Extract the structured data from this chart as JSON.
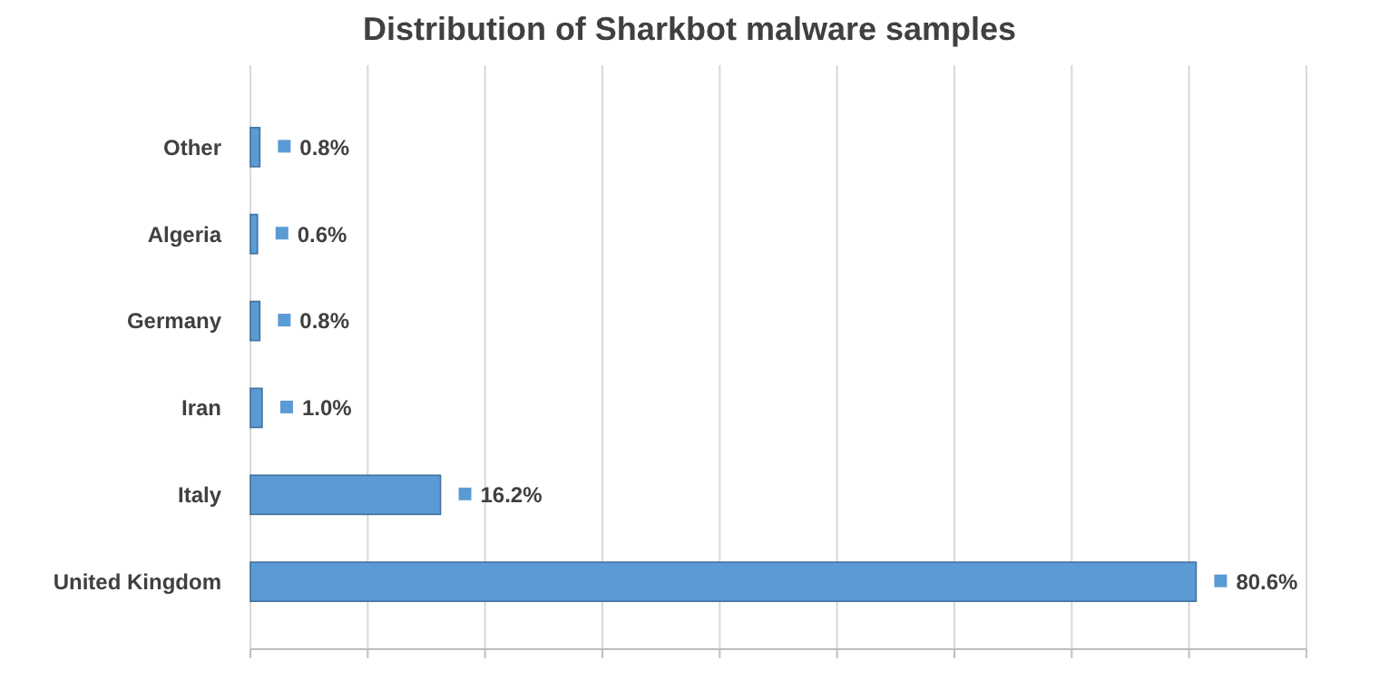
{
  "chart_data": {
    "type": "bar",
    "orientation": "horizontal",
    "title": "Distribution of Sharkbot malware samples",
    "categories": [
      "Other",
      "Algeria",
      "Germany",
      "Iran",
      "Italy",
      "United Kingdom"
    ],
    "values": [
      0.8,
      0.6,
      0.8,
      1.0,
      16.2,
      80.6
    ],
    "value_labels": [
      "0.8%",
      "0.6%",
      "0.8%",
      "1.0%",
      "16.2%",
      "80.6%"
    ],
    "color": "#5b9bd5",
    "xlim": [
      0,
      90
    ],
    "xticks": [
      {
        "value": 0,
        "label": null
      },
      {
        "value": 10,
        "label": null
      },
      {
        "value": 20,
        "label": null
      },
      {
        "value": 30,
        "label": null
      },
      {
        "value": 40,
        "label": null
      },
      {
        "value": 50,
        "label": null
      },
      {
        "value": 60,
        "label": null
      },
      {
        "value": 70,
        "label": null
      },
      {
        "value": 80,
        "label": null
      },
      {
        "value": 90,
        "label": null
      }
    ],
    "grid": "x",
    "tick_labels": "y"
  }
}
